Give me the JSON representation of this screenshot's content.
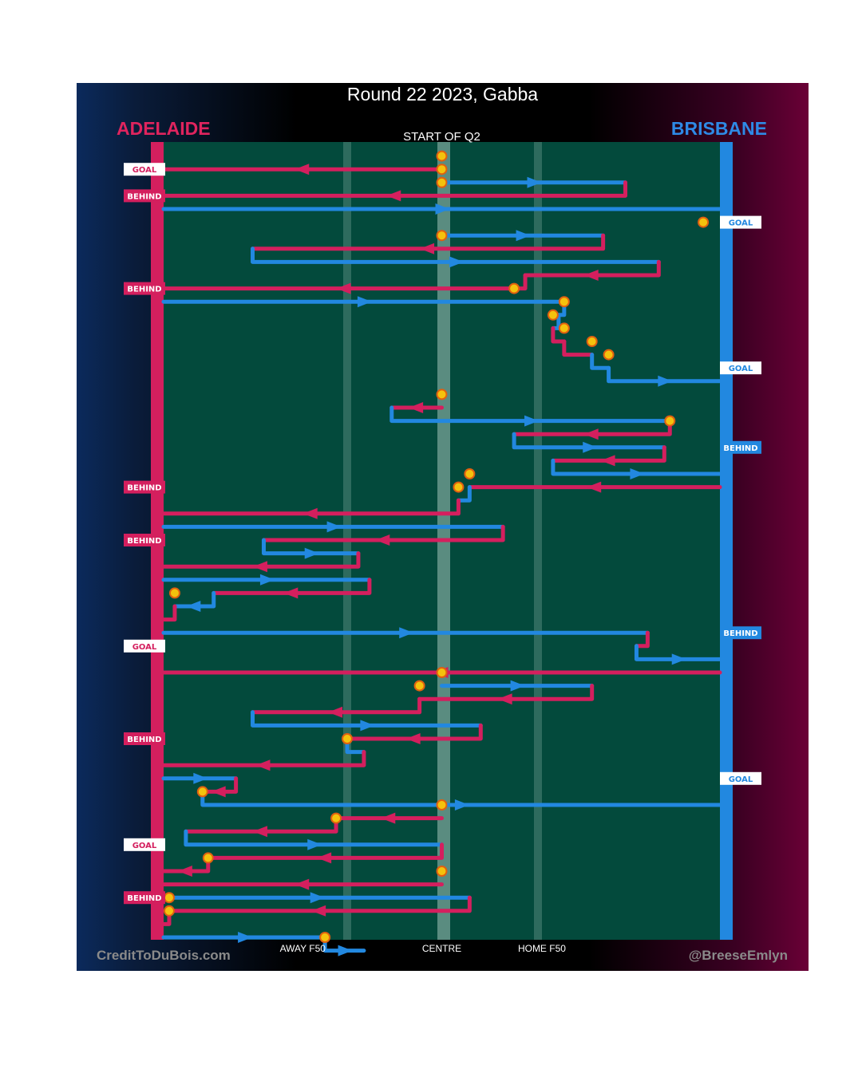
{
  "title": "Round 22 2023, Gabba",
  "teams": {
    "left": "ADELAIDE",
    "right": "BRISBANE"
  },
  "colors": {
    "adelaide": "#d41f5e",
    "brisbane": "#2288e0",
    "field": "#034a3c",
    "stoppage_fill": "#f4c20d"
  },
  "start_label": "START OF Q2",
  "credits": {
    "left": "CreditToDuBois.com",
    "right": "@BreeseEmlyn"
  },
  "chart_data": {
    "type": "line",
    "title": "Round 22 2023, Gabba",
    "subtitle": "START OF Q2",
    "x_axis": {
      "range": [
        0,
        100
      ],
      "tick_labels": [
        {
          "x": 25,
          "label": "AWAY F50"
        },
        {
          "x": 50,
          "label": "CENTRE"
        },
        {
          "x": 68,
          "label": "HOME F50"
        }
      ]
    },
    "left_label": "ADELAIDE",
    "right_label": "BRISBANE",
    "legend_series": [
      "ADELAIDE",
      "BRISBANE"
    ],
    "segments": [
      {
        "team": "A",
        "dir": -1,
        "pts": [
          [
            50,
            2
          ],
          [
            0,
            2
          ]
        ]
      },
      {
        "team": "B",
        "dir": 1,
        "pts": [
          [
            50,
            3
          ],
          [
            83,
            3
          ]
        ]
      },
      {
        "team": "A",
        "dir": -1,
        "pts": [
          [
            83,
            3
          ],
          [
            83,
            4
          ],
          [
            0,
            4
          ]
        ]
      },
      {
        "team": "B",
        "dir": 1,
        "pts": [
          [
            0,
            5
          ],
          [
            100,
            5
          ]
        ]
      },
      {
        "team": "B",
        "dir": 1,
        "pts": [
          [
            50,
            7
          ],
          [
            79,
            7
          ]
        ]
      },
      {
        "team": "A",
        "dir": -1,
        "pts": [
          [
            79,
            7
          ],
          [
            79,
            8
          ],
          [
            16,
            8
          ]
        ]
      },
      {
        "team": "B",
        "dir": 1,
        "pts": [
          [
            16,
            8
          ],
          [
            16,
            9
          ],
          [
            89,
            9
          ]
        ]
      },
      {
        "team": "A",
        "dir": -1,
        "pts": [
          [
            89,
            9
          ],
          [
            89,
            10
          ],
          [
            65,
            10
          ]
        ]
      },
      {
        "team": "A",
        "dir": -1,
        "pts": [
          [
            65,
            10
          ],
          [
            65,
            11
          ],
          [
            0,
            11
          ]
        ]
      },
      {
        "team": "B",
        "dir": 1,
        "pts": [
          [
            0,
            12
          ],
          [
            72,
            12
          ]
        ]
      },
      {
        "team": "B",
        "dir": 1,
        "pts": [
          [
            72,
            12
          ],
          [
            72,
            13
          ],
          [
            71,
            13
          ]
        ]
      },
      {
        "team": "B",
        "dir": 1,
        "pts": [
          [
            71,
            13
          ],
          [
            71,
            14
          ],
          [
            70,
            14
          ]
        ]
      },
      {
        "team": "A",
        "dir": 1,
        "pts": [
          [
            70,
            14
          ],
          [
            70,
            15
          ],
          [
            72,
            15
          ]
        ]
      },
      {
        "team": "A",
        "dir": 1,
        "pts": [
          [
            72,
            15
          ],
          [
            72,
            16
          ],
          [
            77,
            16
          ]
        ]
      },
      {
        "team": "B",
        "dir": 1,
        "pts": [
          [
            77,
            16
          ],
          [
            77,
            17
          ],
          [
            80,
            17
          ]
        ]
      },
      {
        "team": "B",
        "dir": 1,
        "pts": [
          [
            80,
            17
          ],
          [
            80,
            18
          ],
          [
            100,
            18
          ]
        ]
      },
      {
        "team": "A",
        "dir": -1,
        "pts": [
          [
            50,
            20
          ],
          [
            41,
            20
          ]
        ]
      },
      {
        "team": "B",
        "dir": 1,
        "pts": [
          [
            41,
            20
          ],
          [
            41,
            21
          ],
          [
            91,
            21
          ]
        ]
      },
      {
        "team": "A",
        "dir": -1,
        "pts": [
          [
            91,
            21
          ],
          [
            91,
            22
          ],
          [
            63,
            22
          ]
        ]
      },
      {
        "team": "B",
        "dir": 1,
        "pts": [
          [
            63,
            22
          ],
          [
            63,
            23
          ],
          [
            90,
            23
          ]
        ]
      },
      {
        "team": "A",
        "dir": -1,
        "pts": [
          [
            90,
            23
          ],
          [
            90,
            24
          ],
          [
            70,
            24
          ]
        ]
      },
      {
        "team": "B",
        "dir": 1,
        "pts": [
          [
            70,
            24
          ],
          [
            70,
            25
          ],
          [
            100,
            25
          ]
        ]
      },
      {
        "team": "A",
        "dir": -1,
        "pts": [
          [
            100,
            26
          ],
          [
            55,
            26
          ]
        ]
      },
      {
        "team": "B",
        "dir": -1,
        "pts": [
          [
            55,
            26
          ],
          [
            55,
            27
          ],
          [
            53,
            27
          ]
        ]
      },
      {
        "team": "A",
        "dir": -1,
        "pts": [
          [
            53,
            27
          ],
          [
            53,
            28
          ],
          [
            0,
            28
          ]
        ]
      },
      {
        "team": "B",
        "dir": 1,
        "pts": [
          [
            0,
            29
          ],
          [
            61,
            29
          ]
        ]
      },
      {
        "team": "A",
        "dir": -1,
        "pts": [
          [
            61,
            29
          ],
          [
            61,
            30
          ],
          [
            18,
            30
          ]
        ]
      },
      {
        "team": "B",
        "dir": 1,
        "pts": [
          [
            18,
            30
          ],
          [
            18,
            31
          ],
          [
            35,
            31
          ]
        ]
      },
      {
        "team": "A",
        "dir": -1,
        "pts": [
          [
            35,
            31
          ],
          [
            35,
            32
          ],
          [
            0,
            32
          ]
        ]
      },
      {
        "team": "B",
        "dir": 1,
        "pts": [
          [
            0,
            33
          ],
          [
            37,
            33
          ]
        ]
      },
      {
        "team": "A",
        "dir": -1,
        "pts": [
          [
            37,
            33
          ],
          [
            37,
            34
          ],
          [
            9,
            34
          ]
        ]
      },
      {
        "team": "B",
        "dir": -1,
        "pts": [
          [
            9,
            34
          ],
          [
            9,
            35
          ],
          [
            2,
            35
          ]
        ]
      },
      {
        "team": "A",
        "dir": -1,
        "pts": [
          [
            2,
            35
          ],
          [
            2,
            36
          ],
          [
            0,
            36
          ]
        ]
      },
      {
        "team": "B",
        "dir": 1,
        "pts": [
          [
            0,
            37
          ],
          [
            87,
            37
          ]
        ]
      },
      {
        "team": "A",
        "dir": -1,
        "pts": [
          [
            87,
            37
          ],
          [
            87,
            38
          ],
          [
            85,
            38
          ]
        ]
      },
      {
        "team": "B",
        "dir": 1,
        "pts": [
          [
            85,
            38
          ],
          [
            85,
            39
          ],
          [
            100,
            39
          ]
        ]
      },
      {
        "team": "A",
        "dir": -1,
        "pts": [
          [
            100,
            40
          ],
          [
            0,
            40
          ]
        ]
      },
      {
        "team": "B",
        "dir": 1,
        "pts": [
          [
            50,
            41
          ],
          [
            77,
            41
          ]
        ]
      },
      {
        "team": "A",
        "dir": -1,
        "pts": [
          [
            77,
            41
          ],
          [
            77,
            42
          ],
          [
            46,
            42
          ]
        ]
      },
      {
        "team": "A",
        "dir": -1,
        "pts": [
          [
            46,
            42
          ],
          [
            46,
            43
          ],
          [
            16,
            43
          ]
        ]
      },
      {
        "team": "B",
        "dir": 1,
        "pts": [
          [
            16,
            43
          ],
          [
            16,
            44
          ],
          [
            57,
            44
          ]
        ]
      },
      {
        "team": "A",
        "dir": -1,
        "pts": [
          [
            57,
            44
          ],
          [
            57,
            45
          ],
          [
            33,
            45
          ]
        ]
      },
      {
        "team": "B",
        "dir": 1,
        "pts": [
          [
            33,
            45
          ],
          [
            33,
            46
          ],
          [
            36,
            46
          ]
        ]
      },
      {
        "team": "A",
        "dir": -1,
        "pts": [
          [
            36,
            46
          ],
          [
            36,
            47
          ],
          [
            0,
            47
          ]
        ]
      },
      {
        "team": "B",
        "dir": 1,
        "pts": [
          [
            0,
            48
          ],
          [
            13,
            48
          ]
        ]
      },
      {
        "team": "A",
        "dir": -1,
        "pts": [
          [
            13,
            48
          ],
          [
            13,
            49
          ],
          [
            7,
            49
          ]
        ]
      },
      {
        "team": "B",
        "dir": 1,
        "pts": [
          [
            7,
            49
          ],
          [
            7,
            50
          ],
          [
            100,
            50
          ]
        ]
      },
      {
        "team": "A",
        "dir": -1,
        "pts": [
          [
            50,
            51
          ],
          [
            31,
            51
          ]
        ]
      },
      {
        "team": "A",
        "dir": -1,
        "pts": [
          [
            31,
            51
          ],
          [
            31,
            52
          ],
          [
            4,
            52
          ]
        ]
      },
      {
        "team": "B",
        "dir": 1,
        "pts": [
          [
            4,
            52
          ],
          [
            4,
            53
          ],
          [
            50,
            53
          ]
        ]
      },
      {
        "team": "A",
        "dir": -1,
        "pts": [
          [
            50,
            53
          ],
          [
            50,
            54
          ],
          [
            8,
            54
          ]
        ]
      },
      {
        "team": "A",
        "dir": -1,
        "pts": [
          [
            8,
            54
          ],
          [
            8,
            55
          ],
          [
            0,
            55
          ]
        ]
      },
      {
        "team": "A",
        "dir": -1,
        "pts": [
          [
            50,
            56
          ],
          [
            0,
            56
          ]
        ]
      },
      {
        "team": "B",
        "dir": 1,
        "pts": [
          [
            0,
            57
          ],
          [
            55,
            57
          ]
        ]
      },
      {
        "team": "A",
        "dir": -1,
        "pts": [
          [
            55,
            57
          ],
          [
            55,
            58
          ],
          [
            1,
            58
          ]
        ]
      },
      {
        "team": "A",
        "dir": -1,
        "pts": [
          [
            1,
            58
          ],
          [
            1,
            59
          ],
          [
            0,
            59
          ]
        ]
      },
      {
        "team": "B",
        "dir": 1,
        "pts": [
          [
            0,
            60
          ],
          [
            29,
            60
          ]
        ]
      },
      {
        "team": "B",
        "dir": 1,
        "pts": [
          [
            29,
            60
          ],
          [
            29,
            61
          ],
          [
            36,
            61
          ]
        ]
      }
    ],
    "stoppages": [
      {
        "x": 50,
        "row": 1
      },
      {
        "x": 50,
        "row": 2
      },
      {
        "x": 50,
        "row": 3
      },
      {
        "x": 97,
        "row": 6
      },
      {
        "x": 50,
        "row": 7
      },
      {
        "x": 63,
        "row": 11
      },
      {
        "x": 72,
        "row": 12
      },
      {
        "x": 70,
        "row": 13
      },
      {
        "x": 72,
        "row": 14
      },
      {
        "x": 77,
        "row": 15
      },
      {
        "x": 80,
        "row": 16
      },
      {
        "x": 50,
        "row": 19
      },
      {
        "x": 91,
        "row": 21
      },
      {
        "x": 55,
        "row": 25
      },
      {
        "x": 53,
        "row": 26
      },
      {
        "x": 2,
        "row": 34
      },
      {
        "x": 50,
        "row": 40
      },
      {
        "x": 46,
        "row": 41
      },
      {
        "x": 33,
        "row": 45
      },
      {
        "x": 7,
        "row": 49
      },
      {
        "x": 50,
        "row": 50
      },
      {
        "x": 31,
        "row": 51
      },
      {
        "x": 8,
        "row": 54
      },
      {
        "x": 50,
        "row": 55
      },
      {
        "x": 1,
        "row": 57
      },
      {
        "x": 1,
        "row": 58
      },
      {
        "x": 29,
        "row": 60
      }
    ],
    "scores": [
      {
        "team": "A",
        "type": "GOAL",
        "row": 2
      },
      {
        "team": "A",
        "type": "BEHIND",
        "row": 4
      },
      {
        "team": "B",
        "type": "GOAL",
        "row": 6
      },
      {
        "team": "A",
        "type": "BEHIND",
        "row": 11
      },
      {
        "team": "B",
        "type": "GOAL",
        "row": 17
      },
      {
        "team": "B",
        "type": "BEHIND",
        "row": 23
      },
      {
        "team": "A",
        "type": "BEHIND",
        "row": 26
      },
      {
        "team": "A",
        "type": "BEHIND",
        "row": 30
      },
      {
        "team": "B",
        "type": "BEHIND",
        "row": 37
      },
      {
        "team": "A",
        "type": "GOAL",
        "row": 38
      },
      {
        "team": "A",
        "type": "BEHIND",
        "row": 45
      },
      {
        "team": "B",
        "type": "GOAL",
        "row": 48
      },
      {
        "team": "A",
        "type": "GOAL",
        "row": 53
      },
      {
        "team": "A",
        "type": "BEHIND",
        "row": 57
      }
    ]
  }
}
